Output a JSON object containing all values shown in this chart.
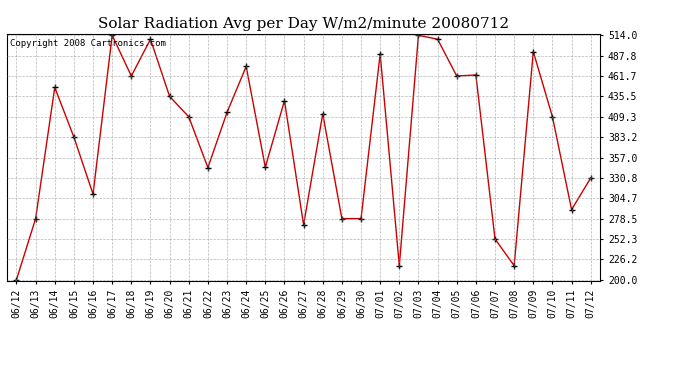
{
  "title": "Solar Radiation Avg per Day W/m2/minute 20080712",
  "copyright_text": "Copyright 2008 Cartronics.com",
  "dates": [
    "06/12",
    "06/13",
    "06/14",
    "06/15",
    "06/16",
    "06/17",
    "06/18",
    "06/19",
    "06/20",
    "06/21",
    "06/22",
    "06/23",
    "06/24",
    "06/25",
    "06/26",
    "06/27",
    "06/28",
    "06/29",
    "06/30",
    "07/01",
    "07/02",
    "07/03",
    "07/04",
    "07/05",
    "07/06",
    "07/07",
    "07/08",
    "07/09",
    "07/10",
    "07/11",
    "07/12"
  ],
  "values": [
    200.0,
    278.5,
    447.0,
    383.2,
    310.0,
    514.0,
    461.7,
    509.0,
    435.5,
    409.3,
    344.0,
    415.0,
    474.0,
    344.5,
    430.0,
    270.5,
    413.0,
    278.5,
    278.5,
    490.0,
    218.0,
    514.0,
    509.0,
    461.7,
    463.0,
    252.3,
    218.0,
    493.0,
    409.3,
    290.0,
    330.8
  ],
  "line_color": "#cc0000",
  "marker_color": "#000000",
  "bg_color": "#ffffff",
  "grid_color": "#888888",
  "ylim_min": 200.0,
  "ylim_max": 514.0,
  "yticks": [
    200.0,
    226.2,
    252.3,
    278.5,
    304.7,
    330.8,
    357.0,
    383.2,
    409.3,
    435.5,
    461.7,
    487.8,
    514.0
  ],
  "title_fontsize": 11,
  "copyright_fontsize": 6.5,
  "tick_fontsize": 7,
  "fig_width": 6.9,
  "fig_height": 3.75,
  "dpi": 100
}
